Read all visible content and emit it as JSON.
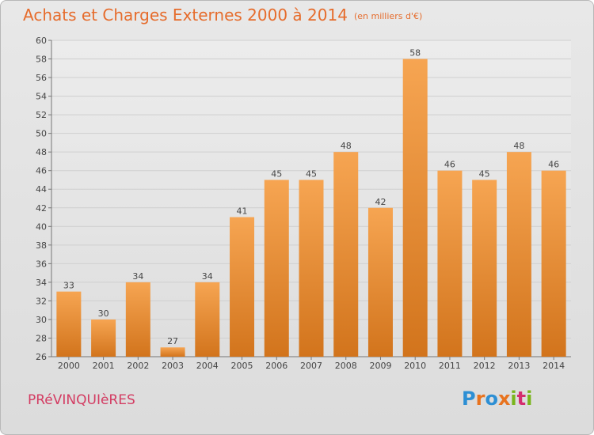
{
  "header": {
    "title": "Achats et Charges Externes 2000 à 2014",
    "unit": "(en milliers d'€)"
  },
  "footer": {
    "commune": "PRéVINQUIèRES",
    "logo_letters": [
      {
        "ch": "P",
        "color": "#2d8fd4"
      },
      {
        "ch": "r",
        "color": "#e8731e"
      },
      {
        "ch": "o",
        "color": "#2d8fd4"
      },
      {
        "ch": "x",
        "color": "#e8731e"
      },
      {
        "ch": "i",
        "color": "#79b51c"
      },
      {
        "ch": "t",
        "color": "#d42d6e"
      },
      {
        "ch": "i",
        "color": "#79b51c"
      }
    ]
  },
  "chart_data": {
    "type": "bar",
    "categories": [
      "2000",
      "2001",
      "2002",
      "2003",
      "2004",
      "2005",
      "2006",
      "2007",
      "2008",
      "2009",
      "2010",
      "2011",
      "2012",
      "2013",
      "2014"
    ],
    "values": [
      33,
      30,
      34,
      27,
      34,
      41,
      45,
      45,
      48,
      42,
      58,
      46,
      45,
      48,
      46
    ],
    "title": "Achats et Charges Externes 2000 à 2014",
    "subtitle": "(en milliers d'€)",
    "ylim": [
      26,
      60
    ],
    "yticks": [
      26,
      28,
      30,
      32,
      34,
      36,
      38,
      40,
      42,
      44,
      46,
      48,
      50,
      52,
      54,
      56,
      58,
      60
    ],
    "grid": true,
    "bar_color": "#f0963e"
  }
}
